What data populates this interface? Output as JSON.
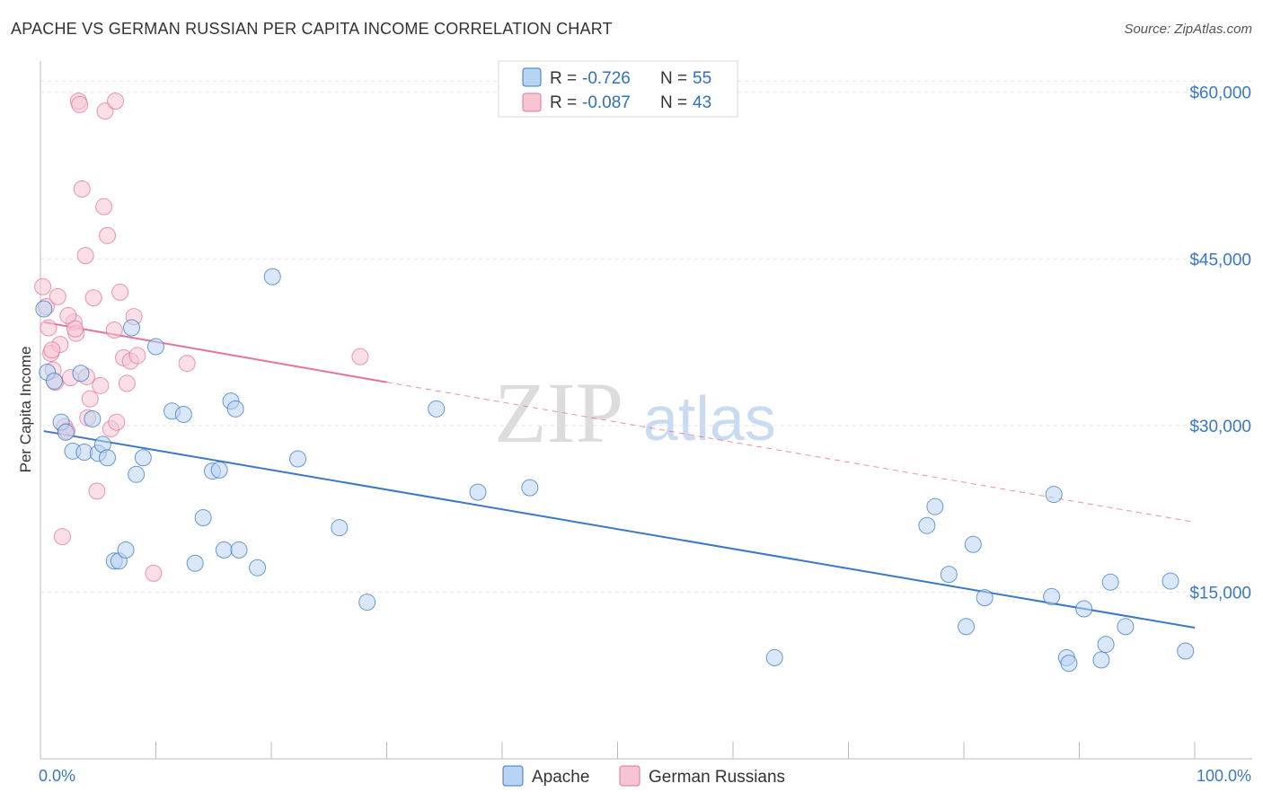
{
  "header": {
    "title": "APACHE VS GERMAN RUSSIAN PER CAPITA INCOME CORRELATION CHART",
    "source": "Source: ZipAtlas.com"
  },
  "watermark": {
    "zip": "ZIP",
    "atlas": "atlas"
  },
  "legend": {
    "r_label": "R =",
    "n_label": "N =",
    "entries": [
      {
        "name": "Apache",
        "r": "-0.726",
        "n": "55",
        "color": "#3a78c8",
        "fill": "#b9d3f3"
      },
      {
        "name": "German Russians",
        "r": "-0.087",
        "n": "43",
        "color": "#e57399",
        "fill": "#f7c4d3"
      }
    ]
  },
  "chart_data": {
    "type": "scatter",
    "title": "APACHE VS GERMAN RUSSIAN PER CAPITA INCOME CORRELATION CHART",
    "xlabel": "",
    "ylabel": "Per Capita Income",
    "xlim": [
      0,
      100
    ],
    "ylim": [
      0,
      62000
    ],
    "x_tick_labels": [
      "0.0%",
      "100.0%"
    ],
    "y_ticks": [
      15000,
      30000,
      45000,
      60000
    ],
    "y_tick_labels": [
      "$15,000",
      "$30,000",
      "$45,000",
      "$60,000"
    ],
    "grid": true,
    "series": [
      {
        "name": "Apache",
        "color": "#3a78c8",
        "trend": {
          "x1": 0.3,
          "y1": 29500,
          "x2": 100,
          "y2": 11800,
          "dashed_to": null
        },
        "points": [
          [
            0.3,
            40500
          ],
          [
            0.6,
            34800
          ],
          [
            1.2,
            34000
          ],
          [
            1.8,
            30300
          ],
          [
            2.2,
            29400
          ],
          [
            2.8,
            27700
          ],
          [
            3.5,
            34700
          ],
          [
            3.8,
            27600
          ],
          [
            4.5,
            30600
          ],
          [
            5.0,
            27500
          ],
          [
            5.4,
            28300
          ],
          [
            5.8,
            27100
          ],
          [
            6.4,
            17800
          ],
          [
            6.8,
            17800
          ],
          [
            7.4,
            18800
          ],
          [
            7.9,
            38800
          ],
          [
            8.3,
            25600
          ],
          [
            8.9,
            27100
          ],
          [
            10.0,
            37100
          ],
          [
            11.4,
            31300
          ],
          [
            12.4,
            31000
          ],
          [
            13.4,
            17600
          ],
          [
            14.1,
            21700
          ],
          [
            14.9,
            25900
          ],
          [
            15.5,
            26000
          ],
          [
            15.9,
            18800
          ],
          [
            16.5,
            32200
          ],
          [
            16.9,
            31500
          ],
          [
            17.2,
            18800
          ],
          [
            18.8,
            17200
          ],
          [
            20.1,
            43400
          ],
          [
            22.3,
            27000
          ],
          [
            25.9,
            20800
          ],
          [
            28.3,
            14100
          ],
          [
            34.3,
            31500
          ],
          [
            37.9,
            24000
          ],
          [
            42.4,
            24400
          ],
          [
            63.6,
            9100
          ],
          [
            76.8,
            21000
          ],
          [
            77.5,
            22700
          ],
          [
            78.7,
            16600
          ],
          [
            80.2,
            11900
          ],
          [
            80.8,
            19300
          ],
          [
            81.8,
            14500
          ],
          [
            87.8,
            23800
          ],
          [
            87.6,
            14600
          ],
          [
            88.9,
            9100
          ],
          [
            89.1,
            8600
          ],
          [
            90.4,
            13500
          ],
          [
            91.9,
            8900
          ],
          [
            92.3,
            10300
          ],
          [
            92.7,
            15900
          ],
          [
            94.0,
            11900
          ],
          [
            97.9,
            16000
          ],
          [
            99.2,
            9700
          ]
        ]
      },
      {
        "name": "German Russians",
        "color": "#e57399",
        "trend": {
          "x1": 0.3,
          "y1": 39300,
          "x2": 30,
          "y2": 33900,
          "dashed_to": {
            "x": 100,
            "y": 21300
          }
        },
        "points": [
          [
            0.2,
            42500
          ],
          [
            0.5,
            40700
          ],
          [
            0.7,
            38800
          ],
          [
            0.9,
            36500
          ],
          [
            1.1,
            35000
          ],
          [
            1.3,
            33900
          ],
          [
            1.5,
            41600
          ],
          [
            1.7,
            37300
          ],
          [
            1.9,
            20000
          ],
          [
            2.1,
            29900
          ],
          [
            2.3,
            29500
          ],
          [
            2.6,
            34300
          ],
          [
            2.9,
            39300
          ],
          [
            3.1,
            38300
          ],
          [
            3.3,
            59200
          ],
          [
            3.6,
            51300
          ],
          [
            3.9,
            45300
          ],
          [
            4.1,
            30700
          ],
          [
            4.3,
            32400
          ],
          [
            4.6,
            41500
          ],
          [
            4.9,
            24100
          ],
          [
            5.2,
            33600
          ],
          [
            5.5,
            49700
          ],
          [
            5.8,
            47100
          ],
          [
            6.1,
            29700
          ],
          [
            6.4,
            38600
          ],
          [
            6.6,
            30300
          ],
          [
            6.9,
            42000
          ],
          [
            7.2,
            36100
          ],
          [
            7.5,
            33800
          ],
          [
            7.8,
            35800
          ],
          [
            8.1,
            39800
          ],
          [
            8.4,
            36300
          ],
          [
            9.8,
            16700
          ],
          [
            12.7,
            35600
          ],
          [
            27.7,
            36200
          ],
          [
            2.4,
            39900
          ],
          [
            3.0,
            38700
          ],
          [
            5.6,
            58300
          ],
          [
            6.5,
            59200
          ],
          [
            3.4,
            58900
          ],
          [
            1.0,
            36800
          ],
          [
            4.0,
            34400
          ]
        ]
      }
    ]
  }
}
